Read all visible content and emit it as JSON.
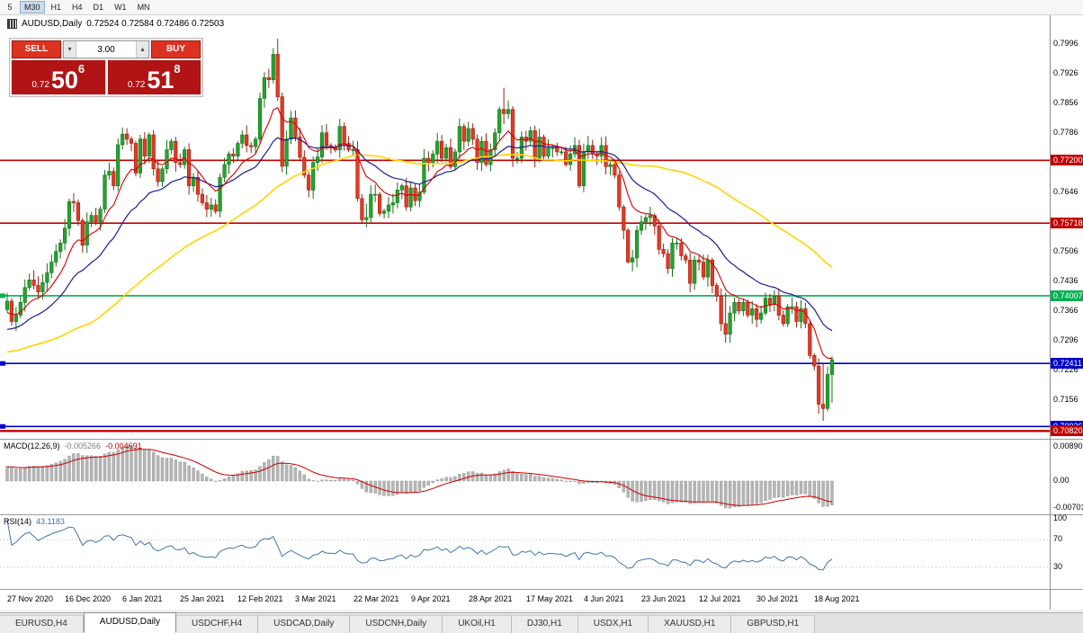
{
  "toolbar": {
    "buttons": [
      {
        "label": "5",
        "active": false
      },
      {
        "label": "M30",
        "active": true
      },
      {
        "label": "H1",
        "active": false
      },
      {
        "label": "H4",
        "active": false
      },
      {
        "label": "D1",
        "active": false
      },
      {
        "label": "W1",
        "active": false
      },
      {
        "label": "MN",
        "active": false
      }
    ]
  },
  "chart": {
    "header": {
      "symbol": "AUDUSD,Daily",
      "ohlc": "0.72524 0.72584 0.72486 0.72503"
    }
  },
  "trade_panel": {
    "sell_label": "SELL",
    "buy_label": "BUY",
    "volume": "3.00",
    "bid": {
      "prefix": "0.72",
      "big": "50",
      "sup": "6"
    },
    "ask": {
      "prefix": "0.72",
      "big": "51",
      "sup": "8"
    }
  },
  "macd_panel": {
    "title": "MACD(12,26,9)",
    "value_main": "-0.005266",
    "value_signal": "-0.004691",
    "axis": [
      {
        "text": "0.00890",
        "value": 0.0089
      },
      {
        "text": "0.00",
        "value": 0.0
      },
      {
        "text": "-0.00701",
        "value": -0.00701
      }
    ]
  },
  "rsi_panel": {
    "title": "RSI(14)",
    "value": "43.1183",
    "levels": [
      70,
      30
    ],
    "axis": [
      {
        "text": "100",
        "value": 100
      },
      {
        "text": "70",
        "value": 70
      },
      {
        "text": "30",
        "value": 30
      }
    ]
  },
  "date_axis": {
    "bars_per_label": 13,
    "labels": [
      "27 Nov 2020",
      "16 Dec 2020",
      "6 Jan 2021",
      "25 Jan 2021",
      "12 Feb 2021",
      "3 Mar 2021",
      "22 Mar 2021",
      "9 Apr 2021",
      "28 Apr 2021",
      "17 May 2021",
      "4 Jun 2021",
      "23 Jun 2021",
      "12 Jul 2021",
      "30 Jul 2021",
      "18 Aug 2021"
    ]
  },
  "tabs": {
    "items": [
      {
        "label": "EURUSD,H4",
        "active": false
      },
      {
        "label": "AUDUSD,Daily",
        "active": true
      },
      {
        "label": "USDCHF,H4",
        "active": false
      },
      {
        "label": "USDCAD,Daily",
        "active": false
      },
      {
        "label": "USDCNH,Daily",
        "active": false
      },
      {
        "label": "UKOil,H1",
        "active": false
      },
      {
        "label": "DJ30,H1",
        "active": false
      },
      {
        "label": "USDX,H1",
        "active": false
      },
      {
        "label": "XAUUSD,H1",
        "active": false
      },
      {
        "label": "GBPUSD,H1",
        "active": false
      }
    ]
  },
  "chart_data": {
    "type": "candlestick",
    "symbol": "AUDUSD",
    "timeframe": "Daily",
    "first_bar_date": "27 Nov 2020",
    "ylim": [
      0.70635,
      0.8062
    ],
    "price_axis_ticks": [
      {
        "text": "0.7996",
        "value": 0.7996
      },
      {
        "text": "0.7926",
        "value": 0.7926
      },
      {
        "text": "0.7856",
        "value": 0.7856
      },
      {
        "text": "0.7786",
        "value": 0.7786
      },
      {
        "text": "0.7716",
        "value": 0.7716
      },
      {
        "text": "0.7646",
        "value": 0.7646
      },
      {
        "text": "0.7576",
        "value": 0.7576
      },
      {
        "text": "0.7506",
        "value": 0.7506
      },
      {
        "text": "0.7436",
        "value": 0.7436
      },
      {
        "text": "0.7366",
        "value": 0.7366
      },
      {
        "text": "0.7296",
        "value": 0.7296
      },
      {
        "text": "0.7226",
        "value": 0.7226
      },
      {
        "text": "0.7156",
        "value": 0.7156
      },
      {
        "text": "0.7086",
        "value": 0.7086
      }
    ],
    "hlines": [
      {
        "price": 0.772,
        "label": "0.77200",
        "color": "#c00000",
        "width": 1.6,
        "anchor": false
      },
      {
        "price": 0.75718,
        "label": "0.75718",
        "color": "#c00000",
        "width": 1.6,
        "anchor": false
      },
      {
        "price": 0.74007,
        "label": "0.74007",
        "color": "#00b050",
        "width": 1.6,
        "anchor": true
      },
      {
        "price": 0.72411,
        "label": "0.72411",
        "color": "#0000cc",
        "width": 1.6,
        "anchor": true
      },
      {
        "price": 0.70926,
        "label": "0.70926",
        "color": "#0000cc",
        "width": 1.6,
        "anchor": true
      },
      {
        "price": 0.7082,
        "label": "0.70820",
        "color": "#c00000",
        "width": 2.4,
        "anchor": false
      }
    ],
    "moving_averages": [
      {
        "method": "sma",
        "period": 60,
        "color": "#ffd400",
        "width": 1.6
      },
      {
        "method": "ema",
        "period": 24,
        "color": "#1c1c96",
        "width": 1.2
      },
      {
        "method": "ema",
        "period": 10,
        "color": "#d40000",
        "width": 1.1
      }
    ],
    "indicators": [
      {
        "name": "MACD",
        "params": [
          12,
          26,
          9
        ],
        "current": [
          -0.005266,
          -0.004691
        ],
        "scale": [
          -0.0082,
          0.0098
        ]
      },
      {
        "name": "RSI",
        "params": [
          14
        ],
        "current": 43.1183,
        "scale": [
          0,
          100
        ]
      }
    ],
    "closes": [
      0.7388,
      0.734,
      0.7355,
      0.7385,
      0.742,
      0.7438,
      0.7425,
      0.741,
      0.7432,
      0.7455,
      0.748,
      0.7505,
      0.7525,
      0.756,
      0.7623,
      0.762,
      0.7578,
      0.752,
      0.7575,
      0.759,
      0.7575,
      0.7605,
      0.7685,
      0.7694,
      0.766,
      0.7757,
      0.7782,
      0.777,
      0.776,
      0.769,
      0.777,
      0.773,
      0.778,
      0.77,
      0.767,
      0.77,
      0.7745,
      0.7765,
      0.7715,
      0.771,
      0.7745,
      0.766,
      0.768,
      0.764,
      0.762,
      0.7605,
      0.7615,
      0.76,
      0.768,
      0.771,
      0.7735,
      0.773,
      0.776,
      0.778,
      0.7755,
      0.7752,
      0.777,
      0.7866,
      0.7915,
      0.791,
      0.797,
      0.787,
      0.7706,
      0.777,
      0.782,
      0.7775,
      0.7727,
      0.7685,
      0.765,
      0.7715,
      0.7728,
      0.7785,
      0.7755,
      0.775,
      0.7745,
      0.78,
      0.776,
      0.7745,
      0.7745,
      0.763,
      0.758,
      0.7585,
      0.764,
      0.764,
      0.7595,
      0.76,
      0.7615,
      0.762,
      0.765,
      0.766,
      0.761,
      0.7655,
      0.7625,
      0.7645,
      0.7725,
      0.7715,
      0.7735,
      0.7765,
      0.7725,
      0.775,
      0.7705,
      0.774,
      0.78,
      0.7765,
      0.7795,
      0.777,
      0.7715,
      0.7765,
      0.771,
      0.7745,
      0.7785,
      0.784,
      0.783,
      0.784,
      0.7725,
      0.7725,
      0.7775,
      0.7765,
      0.779,
      0.7725,
      0.7775,
      0.773,
      0.775,
      0.775,
      0.774,
      0.774,
      0.771,
      0.7735,
      0.7755,
      0.766,
      0.774,
      0.7755,
      0.7735,
      0.773,
      0.7755,
      0.7705,
      0.771,
      0.7685,
      0.761,
      0.7555,
      0.748,
      0.749,
      0.7555,
      0.7575,
      0.7585,
      0.759,
      0.7565,
      0.751,
      0.75,
      0.7465,
      0.7525,
      0.7525,
      0.7495,
      0.7485,
      0.743,
      0.7485,
      0.748,
      0.7445,
      0.7485,
      0.7425,
      0.74,
      0.7335,
      0.731,
      0.736,
      0.7385,
      0.7365,
      0.7385,
      0.7355,
      0.737,
      0.7345,
      0.736,
      0.7395,
      0.738,
      0.74,
      0.7355,
      0.7335,
      0.7375,
      0.7375,
      0.734,
      0.737,
      0.7335,
      0.726,
      0.7235,
      0.7145,
      0.7135,
      0.7215,
      0.725
    ],
    "wick_overrides": {
      "61": [
        0.8007,
        0.786
      ],
      "62": [
        0.788,
        0.7692
      ],
      "81": [
        0.7618,
        0.7562
      ],
      "112": [
        0.7891,
        0.7805
      ],
      "140": [
        0.756,
        0.7478
      ],
      "162": [
        0.7408,
        0.729
      ],
      "184": [
        0.724,
        0.7106
      ],
      "186": [
        0.7258,
        0.7149
      ]
    }
  }
}
